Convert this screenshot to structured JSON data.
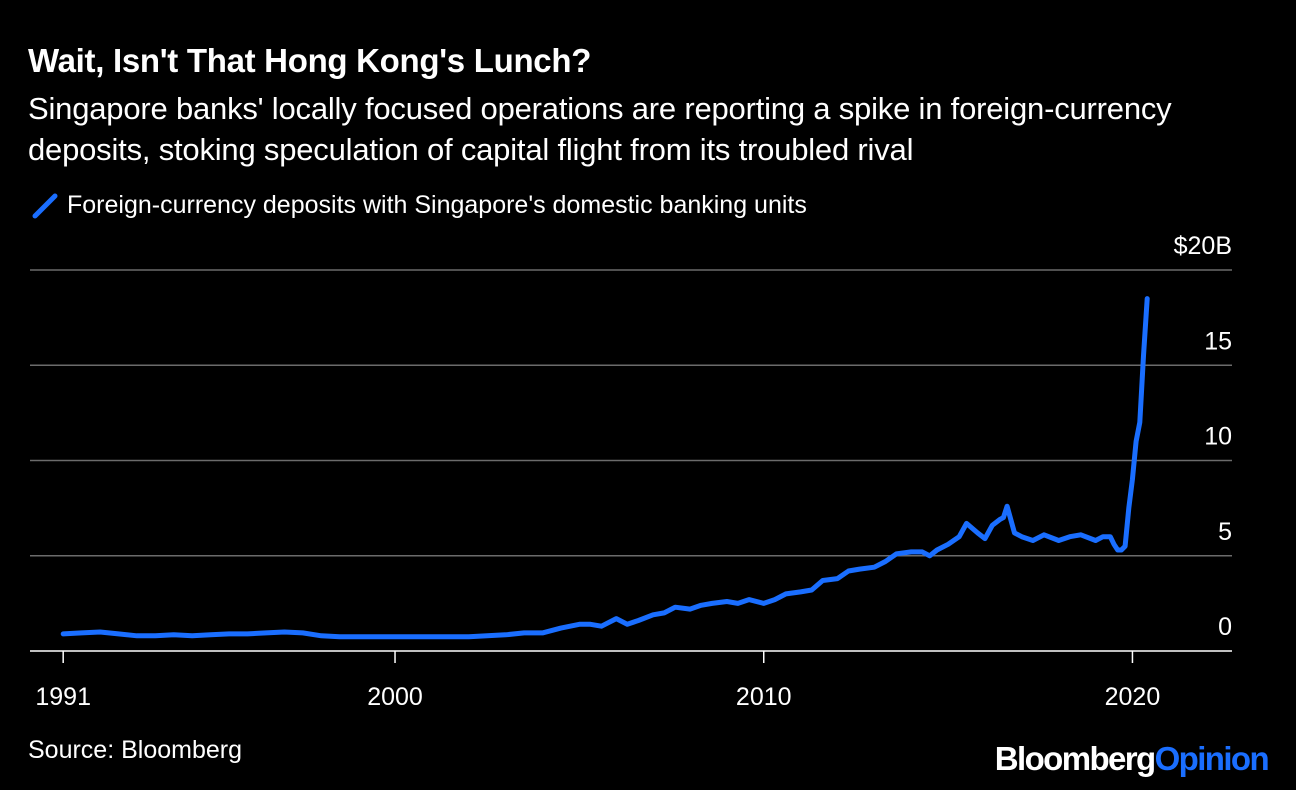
{
  "header": {
    "title": "Wait, Isn't That Hong Kong's Lunch?",
    "subtitle": "Singapore banks' locally focused operations are reporting a spike in foreign-currency deposits, stoking speculation of capital flight from its troubled rival"
  },
  "colors": {
    "background": "#000000",
    "series": "#1a6eff",
    "gridline": "#6b6b6b",
    "text": "#ffffff"
  },
  "footer": {
    "source": "Source: Bloomberg",
    "logo_primary": "Bloomberg",
    "logo_secondary": "Opinion"
  },
  "chart_data": {
    "type": "line",
    "title": "Wait, Isn't That Hong Kong's Lunch?",
    "xlabel": "",
    "ylabel": "",
    "xlim": [
      1990.1,
      2022.7
    ],
    "ylim": [
      0,
      20
    ],
    "grid": true,
    "legend_position": "top-left",
    "y_ticks": [
      {
        "value": 0,
        "label": "0"
      },
      {
        "value": 5,
        "label": "5"
      },
      {
        "value": 10,
        "label": "10"
      },
      {
        "value": 15,
        "label": "15"
      },
      {
        "value": 20,
        "label": "$20B"
      }
    ],
    "x_ticks": [
      {
        "value": 1991,
        "label": "1991"
      },
      {
        "value": 2000,
        "label": "2000"
      },
      {
        "value": 2010,
        "label": "2010"
      },
      {
        "value": 2020,
        "label": "2020"
      }
    ],
    "series": [
      {
        "name": "Foreign-currency deposits with Singapore's domestic banking units",
        "x": [
          1991.0,
          1991.5,
          1992.0,
          1992.5,
          1993.0,
          1993.5,
          1994.0,
          1994.5,
          1995.0,
          1995.5,
          1996.0,
          1996.5,
          1997.0,
          1997.5,
          1998.0,
          1998.5,
          1999.0,
          1999.5,
          2000.0,
          2000.5,
          2001.0,
          2001.5,
          2002.0,
          2002.5,
          2003.0,
          2003.5,
          2004.0,
          2004.5,
          2005.0,
          2005.3,
          2005.6,
          2006.0,
          2006.3,
          2006.6,
          2007.0,
          2007.3,
          2007.6,
          2008.0,
          2008.3,
          2008.6,
          2009.0,
          2009.3,
          2009.6,
          2010.0,
          2010.3,
          2010.6,
          2011.0,
          2011.3,
          2011.6,
          2012.0,
          2012.3,
          2012.6,
          2013.0,
          2013.3,
          2013.6,
          2014.0,
          2014.3,
          2014.5,
          2014.7,
          2015.0,
          2015.3,
          2015.5,
          2015.8,
          2016.0,
          2016.2,
          2016.4,
          2016.5,
          2016.6,
          2016.8,
          2017.0,
          2017.3,
          2017.6,
          2018.0,
          2018.3,
          2018.6,
          2019.0,
          2019.2,
          2019.4,
          2019.5,
          2019.6,
          2019.7,
          2019.8,
          2019.9,
          2020.0,
          2020.1,
          2020.2,
          2020.3,
          2020.4
        ],
        "values": [
          0.9,
          0.95,
          1.0,
          0.9,
          0.8,
          0.8,
          0.85,
          0.8,
          0.85,
          0.9,
          0.9,
          0.95,
          1.0,
          0.95,
          0.8,
          0.75,
          0.75,
          0.75,
          0.75,
          0.75,
          0.75,
          0.75,
          0.75,
          0.8,
          0.85,
          0.95,
          0.95,
          1.2,
          1.4,
          1.4,
          1.3,
          1.7,
          1.4,
          1.6,
          1.9,
          2.0,
          2.3,
          2.2,
          2.4,
          2.5,
          2.6,
          2.5,
          2.7,
          2.5,
          2.7,
          3.0,
          3.1,
          3.2,
          3.7,
          3.8,
          4.2,
          4.3,
          4.4,
          4.7,
          5.1,
          5.2,
          5.2,
          5.0,
          5.3,
          5.6,
          6.0,
          6.7,
          6.2,
          5.9,
          6.6,
          6.9,
          7.0,
          7.6,
          6.2,
          6.0,
          5.8,
          6.1,
          5.8,
          6.0,
          6.1,
          5.8,
          6.0,
          6.0,
          5.6,
          5.3,
          5.3,
          5.5,
          7.5,
          9.0,
          11.0,
          12.0,
          15.5,
          18.5
        ]
      }
    ]
  }
}
